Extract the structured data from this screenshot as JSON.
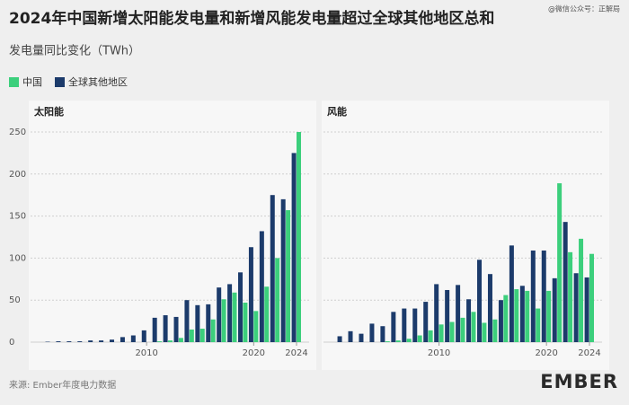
{
  "title": "2024年中国新增太阳能发电量和新增风能发电量超过全球其他地区总和",
  "subtitle": "发电量同比变化（TWh）",
  "watermark": "@微信公众号：正解局",
  "source": "来源: Ember年度电力数据",
  "logo": "EMBER",
  "chart_data": [
    {
      "type": "bar",
      "title": "太阳能",
      "x": [
        2000,
        2001,
        2002,
        2003,
        2004,
        2005,
        2006,
        2007,
        2008,
        2009,
        2010,
        2011,
        2012,
        2013,
        2014,
        2015,
        2016,
        2017,
        2018,
        2019,
        2020,
        2021,
        2022,
        2023,
        2024
      ],
      "xlim": [
        2000,
        2024
      ],
      "xticks": [
        2010,
        2020,
        2024
      ],
      "ylim": [
        0,
        250
      ],
      "yticks": [
        0,
        50,
        100,
        150,
        200,
        250
      ],
      "grid": true,
      "series": [
        {
          "name": "中国",
          "color": "#3ccf7c",
          "values": [
            0,
            0,
            0,
            0,
            0,
            0,
            0,
            0,
            0,
            0,
            0,
            1,
            2,
            5,
            15,
            16,
            27,
            51,
            59,
            47,
            37,
            66,
            100,
            157,
            250
          ]
        },
        {
          "name": "全球其他地区",
          "color": "#1c3b6b",
          "values": [
            0,
            0.5,
            1,
            1,
            1,
            2,
            2,
            3,
            6,
            8,
            14,
            29,
            32,
            30,
            50,
            44,
            45,
            65,
            69,
            83,
            113,
            132,
            175,
            170,
            225
          ]
        }
      ]
    },
    {
      "type": "bar",
      "title": "风能",
      "x": [
        2000,
        2001,
        2002,
        2003,
        2004,
        2005,
        2006,
        2007,
        2008,
        2009,
        2010,
        2011,
        2012,
        2013,
        2014,
        2015,
        2016,
        2017,
        2018,
        2019,
        2020,
        2021,
        2022,
        2023,
        2024
      ],
      "xlim": [
        2000,
        2024
      ],
      "xticks": [
        2010,
        2020,
        2024
      ],
      "ylim": [
        0,
        250
      ],
      "yticks": [
        0,
        50,
        100,
        150,
        200,
        250
      ],
      "grid": true,
      "series": [
        {
          "name": "中国",
          "color": "#3ccf7c",
          "values": [
            0,
            0,
            0,
            0,
            0,
            1,
            2,
            4,
            8,
            14,
            21,
            24,
            29,
            36,
            23,
            27,
            56,
            63,
            61,
            40,
            61,
            189,
            107,
            123,
            105
          ]
        },
        {
          "name": "全球其他地区",
          "color": "#1c3b6b",
          "values": [
            0,
            7,
            13,
            10,
            22,
            19,
            36,
            40,
            40,
            48,
            69,
            62,
            68,
            51,
            98,
            81,
            50,
            115,
            67,
            109,
            109,
            76,
            143,
            82,
            77
          ]
        }
      ]
    }
  ]
}
